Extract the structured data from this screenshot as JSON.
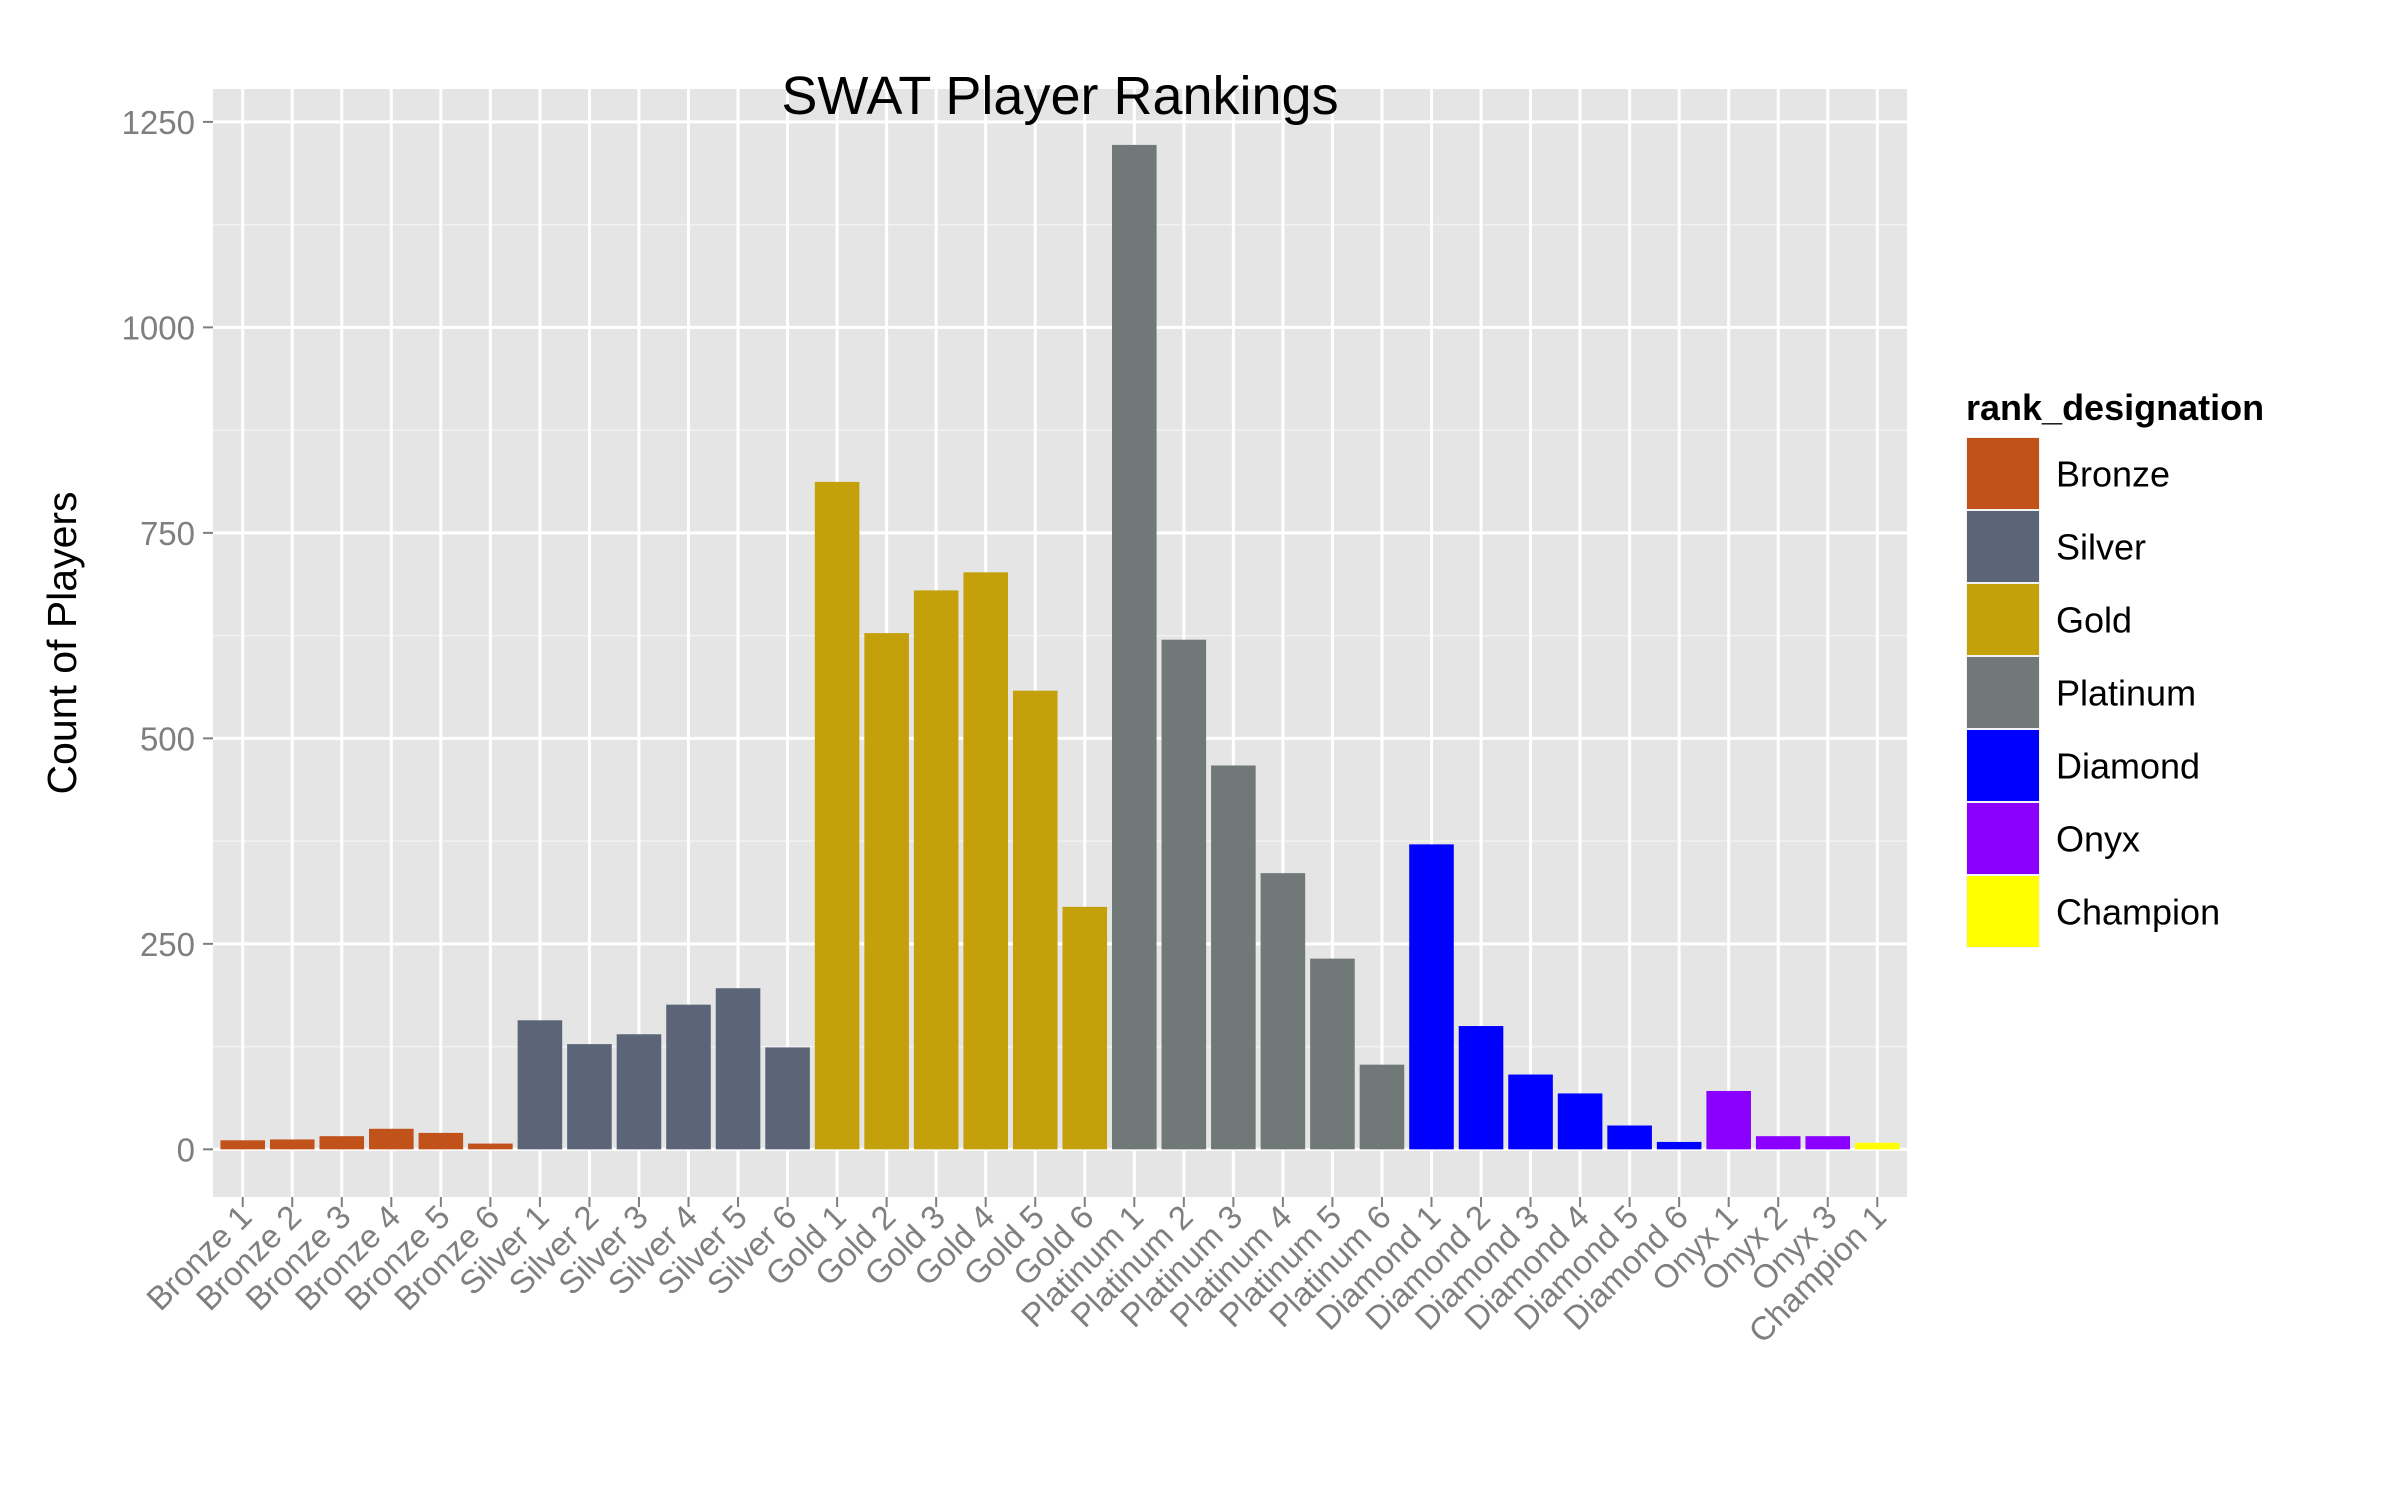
{
  "chart_data": {
    "type": "bar",
    "title": "SWAT Player Rankings",
    "xlabel": "",
    "ylabel": "Count of Players",
    "ylim": [
      -58,
      1290
    ],
    "yticks": [
      0,
      250,
      500,
      750,
      1000,
      1250
    ],
    "grid": true,
    "legend": {
      "title": "rank_designation",
      "placement": "right",
      "entries": [
        {
          "name": "Bronze",
          "color": "#C1531A"
        },
        {
          "name": "Silver",
          "color": "#5B6577"
        },
        {
          "name": "Gold",
          "color": "#C4A00A"
        },
        {
          "name": "Platinum",
          "color": "#707878"
        },
        {
          "name": "Diamond",
          "color": "#0000FF"
        },
        {
          "name": "Onyx",
          "color": "#8A00FF"
        },
        {
          "name": "Champion",
          "color": "#FFFF00"
        }
      ]
    },
    "categories": [
      "Bronze 1",
      "Bronze 2",
      "Bronze 3",
      "Bronze 4",
      "Bronze 5",
      "Bronze 6",
      "Silver 1",
      "Silver 2",
      "Silver 3",
      "Silver 4",
      "Silver 5",
      "Silver 6",
      "Gold 1",
      "Gold 2",
      "Gold 3",
      "Gold 4",
      "Gold 5",
      "Gold 6",
      "Platinum 1",
      "Platinum 2",
      "Platinum 3",
      "Platinum 4",
      "Platinum 5",
      "Platinum 6",
      "Diamond 1",
      "Diamond 2",
      "Diamond 3",
      "Diamond 4",
      "Diamond 5",
      "Diamond 6",
      "Onyx 1",
      "Onyx 2",
      "Onyx 3",
      "Champion 1"
    ],
    "groups": [
      "Bronze",
      "Bronze",
      "Bronze",
      "Bronze",
      "Bronze",
      "Bronze",
      "Silver",
      "Silver",
      "Silver",
      "Silver",
      "Silver",
      "Silver",
      "Gold",
      "Gold",
      "Gold",
      "Gold",
      "Gold",
      "Gold",
      "Platinum",
      "Platinum",
      "Platinum",
      "Platinum",
      "Platinum",
      "Platinum",
      "Diamond",
      "Diamond",
      "Diamond",
      "Diamond",
      "Diamond",
      "Diamond",
      "Onyx",
      "Onyx",
      "Onyx",
      "Champion"
    ],
    "values": [
      11,
      12,
      16,
      25,
      20,
      7,
      157,
      128,
      140,
      176,
      196,
      124,
      812,
      628,
      680,
      702,
      558,
      295,
      1222,
      620,
      467,
      336,
      232,
      103,
      371,
      150,
      91,
      68,
      29,
      9,
      71,
      16,
      16,
      8
    ]
  }
}
